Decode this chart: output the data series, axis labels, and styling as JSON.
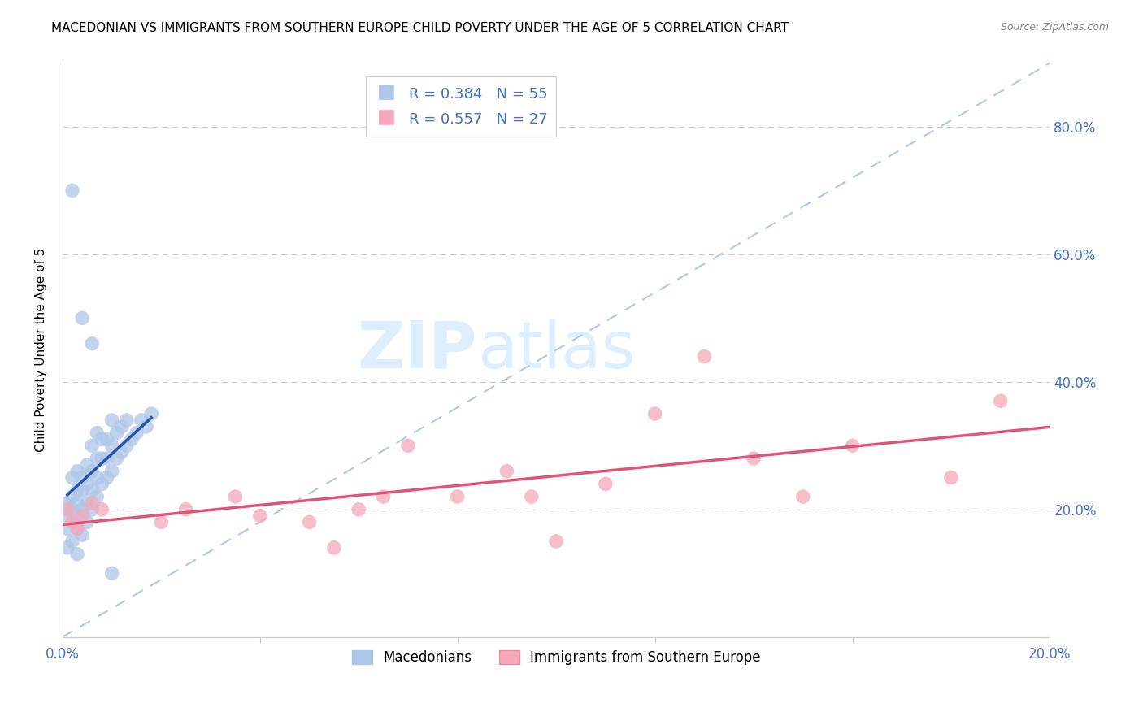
{
  "title": "MACEDONIAN VS IMMIGRANTS FROM SOUTHERN EUROPE CHILD POVERTY UNDER THE AGE OF 5 CORRELATION CHART",
  "source": "Source: ZipAtlas.com",
  "ylabel": "Child Poverty Under the Age of 5",
  "xlim": [
    0.0,
    0.2
  ],
  "ylim": [
    0.0,
    0.9
  ],
  "background_color": "#ffffff",
  "grid_color": "#c8c8c8",
  "axis_color": "#4472c4",
  "blue_scatter_color": "#aec6e8",
  "pink_scatter_color": "#f4a8ba",
  "blue_line_color": "#2255aa",
  "pink_line_color": "#e05575",
  "diag_line_color": "#b0c8e8",
  "legend_blue_text": "R = 0.384   N = 55",
  "legend_pink_text": "R = 0.557   N = 27",
  "legend_label_blue": "Macedonians",
  "legend_label_pink": "Immigrants from Southern Europe",
  "watermark_top": "ZIP",
  "watermark_bottom": "atlas",
  "watermark_color": "#ddeeff",
  "title_fontsize": 11,
  "axis_label_fontsize": 11,
  "tick_fontsize": 12,
  "legend_fontsize": 13,
  "mac_x": [
    0.001,
    0.001,
    0.001,
    0.001,
    0.002,
    0.002,
    0.002,
    0.002,
    0.002,
    0.003,
    0.003,
    0.003,
    0.003,
    0.003,
    0.003,
    0.004,
    0.004,
    0.004,
    0.004,
    0.005,
    0.005,
    0.005,
    0.005,
    0.006,
    0.006,
    0.006,
    0.006,
    0.007,
    0.007,
    0.007,
    0.007,
    0.008,
    0.008,
    0.008,
    0.009,
    0.009,
    0.009,
    0.01,
    0.01,
    0.01,
    0.011,
    0.011,
    0.012,
    0.012,
    0.013,
    0.013,
    0.014,
    0.015,
    0.016,
    0.017,
    0.018,
    0.002,
    0.004,
    0.006,
    0.01
  ],
  "mac_y": [
    0.14,
    0.17,
    0.19,
    0.21,
    0.15,
    0.18,
    0.2,
    0.22,
    0.25,
    0.13,
    0.17,
    0.19,
    0.21,
    0.23,
    0.26,
    0.16,
    0.2,
    0.23,
    0.25,
    0.18,
    0.21,
    0.24,
    0.27,
    0.2,
    0.23,
    0.26,
    0.3,
    0.22,
    0.25,
    0.28,
    0.32,
    0.24,
    0.28,
    0.31,
    0.25,
    0.28,
    0.31,
    0.26,
    0.3,
    0.34,
    0.28,
    0.32,
    0.29,
    0.33,
    0.3,
    0.34,
    0.31,
    0.32,
    0.34,
    0.33,
    0.35,
    0.7,
    0.5,
    0.46,
    0.1
  ],
  "imm_x": [
    0.001,
    0.002,
    0.003,
    0.004,
    0.006,
    0.008,
    0.02,
    0.025,
    0.035,
    0.04,
    0.05,
    0.055,
    0.06,
    0.065,
    0.07,
    0.08,
    0.09,
    0.095,
    0.1,
    0.11,
    0.12,
    0.13,
    0.14,
    0.15,
    0.16,
    0.18,
    0.19
  ],
  "imm_y": [
    0.2,
    0.18,
    0.17,
    0.19,
    0.21,
    0.2,
    0.18,
    0.2,
    0.22,
    0.19,
    0.18,
    0.14,
    0.2,
    0.22,
    0.3,
    0.22,
    0.26,
    0.22,
    0.15,
    0.24,
    0.35,
    0.44,
    0.28,
    0.22,
    0.3,
    0.25,
    0.37
  ]
}
